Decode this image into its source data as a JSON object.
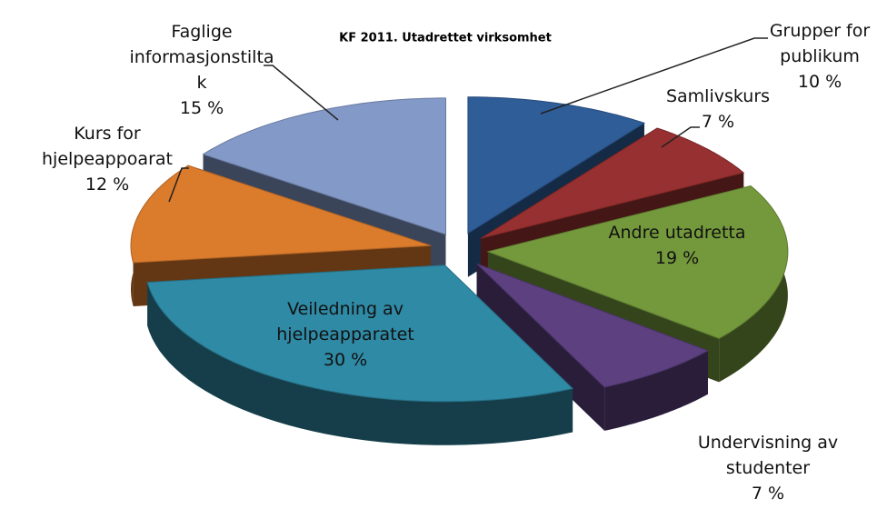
{
  "chart_data": {
    "type": "pie3d",
    "title": "KF 2011. Utadrettet virksomhet",
    "categories": [
      "Grupper for publikum",
      "Samlivskurs",
      "Andre utadretta",
      "Undervisning av studenter",
      "Veiledning av hjelpeapparatet",
      "Kurs for hjelpeappoarat",
      "Faglige informasjonstiltak"
    ],
    "values": [
      10,
      7,
      19,
      7,
      30,
      12,
      15
    ],
    "value_labels": [
      "10 %",
      "7 %",
      "19 %",
      "7 %",
      "30 %",
      "12 %",
      "15 %"
    ],
    "colors": [
      "#2f5d98",
      "#973030",
      "#74993c",
      "#5c4080",
      "#2f8aa5",
      "#db7b2c",
      "#8399c8"
    ]
  }
}
